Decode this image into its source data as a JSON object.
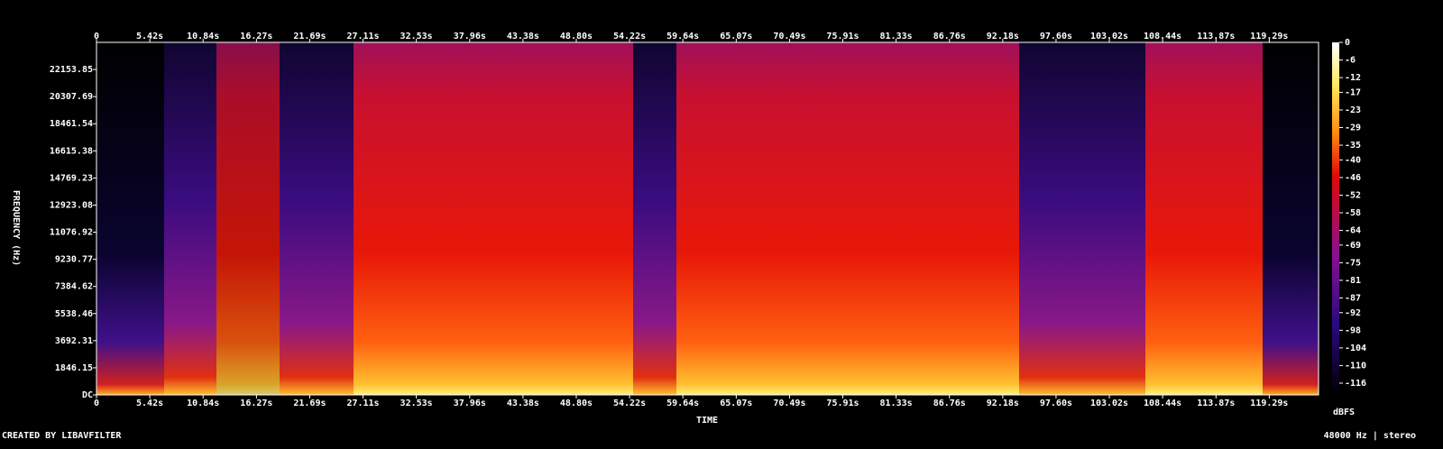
{
  "chart_data": {
    "type": "spectrogram",
    "xlabel": "TIME",
    "ylabel": "FREQUENCY (Hz)",
    "xlim": [
      0,
      124.3
    ],
    "ylim": [
      0,
      24000
    ],
    "xticks": [
      0,
      {
        "value": 5.42,
        "label": "5.42s"
      },
      {
        "value": 10.84,
        "label": "10.84s"
      },
      {
        "value": 16.27,
        "label": "16.27s"
      },
      {
        "value": 21.69,
        "label": "21.69s"
      },
      {
        "value": 27.11,
        "label": "27.11s"
      },
      {
        "value": 32.53,
        "label": "32.53s"
      },
      {
        "value": 37.96,
        "label": "37.96s"
      },
      {
        "value": 43.38,
        "label": "43.38s"
      },
      {
        "value": 48.8,
        "label": "48.80s"
      },
      {
        "value": 54.22,
        "label": "54.22s"
      },
      {
        "value": 59.64,
        "label": "59.64s"
      },
      {
        "value": 65.07,
        "label": "65.07s"
      },
      {
        "value": 70.49,
        "label": "70.49s"
      },
      {
        "value": 75.91,
        "label": "75.91s"
      },
      {
        "value": 81.33,
        "label": "81.33s"
      },
      {
        "value": 86.76,
        "label": "86.76s"
      },
      {
        "value": 92.18,
        "label": "92.18s"
      },
      {
        "value": 97.6,
        "label": "97.60s"
      },
      {
        "value": 103.02,
        "label": "103.02s"
      },
      {
        "value": 108.44,
        "label": "108.44s"
      },
      {
        "value": 113.87,
        "label": "113.87s"
      },
      {
        "value": 119.29,
        "label": "119.29s"
      }
    ],
    "yticks": [
      {
        "value": 0,
        "label": "DC"
      },
      1846.15,
      3692.31,
      5538.46,
      7384.62,
      9230.77,
      11076.92,
      12923.08,
      14769.23,
      16615.38,
      18461.54,
      20307.69,
      22153.85
    ],
    "colorbar": {
      "label": "dBFS",
      "lim": [
        -120,
        0
      ],
      "ticks": [
        0,
        -6,
        -12,
        -17,
        -23,
        -29,
        -35,
        -40,
        -46,
        -52,
        -58,
        -64,
        -69,
        -75,
        -81,
        -87,
        -92,
        -98,
        -104,
        -110,
        -116
      ]
    }
  },
  "footer": {
    "left": "CREATED BY LIBAVFILTER",
    "right": "48000 Hz | stereo"
  }
}
